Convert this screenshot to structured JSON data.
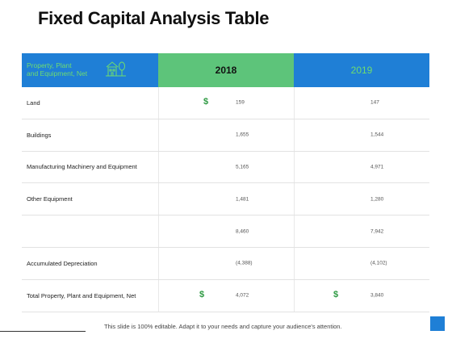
{
  "title": "Fixed Capital Analysis Table",
  "header": {
    "label_line1": "Property, Plant",
    "label_line2": "and Equipment, Net",
    "icon": "building-tree-icon",
    "year1": "2018",
    "year2": "2019"
  },
  "rows": [
    {
      "label": "Land",
      "v2018": "159",
      "v2019": "147",
      "dollar2018": "$",
      "dollar2019": ""
    },
    {
      "label": "Buildings",
      "v2018": "1,655",
      "v2019": "1,544",
      "dollar2018": "",
      "dollar2019": ""
    },
    {
      "label": "Manufacturing Machinery and Equipment",
      "v2018": "5,165",
      "v2019": "4,971",
      "dollar2018": "",
      "dollar2019": ""
    },
    {
      "label": "Other Equipment",
      "v2018": "1,481",
      "v2019": "1,280",
      "dollar2018": "",
      "dollar2019": ""
    },
    {
      "label": "",
      "v2018": "8,460",
      "v2019": "7,942",
      "dollar2018": "",
      "dollar2019": ""
    },
    {
      "label": "Accumulated Depreciation",
      "v2018": "(4,388)",
      "v2019": "(4,102)",
      "dollar2018": "",
      "dollar2019": ""
    },
    {
      "label": "Total Property, Plant and Equipment, Net",
      "v2018": "4,072",
      "v2019": "3,840",
      "dollar2018": "$",
      "dollar2019": "$"
    }
  ],
  "footer": "This slide is 100% editable. Adapt it to your needs and capture your audience's attention.",
  "colors": {
    "blue": "#1f7fd6",
    "green": "#5dc47a",
    "dollar": "#2e9a43"
  }
}
